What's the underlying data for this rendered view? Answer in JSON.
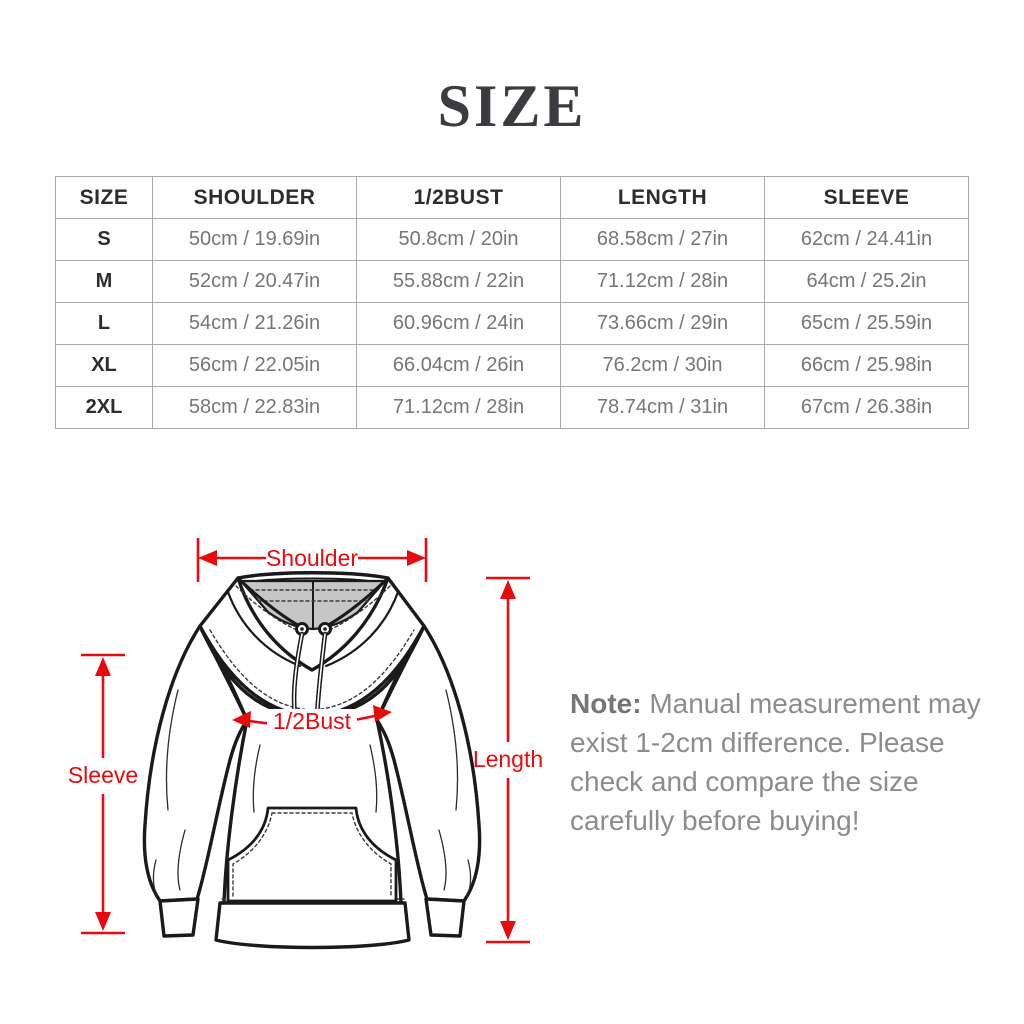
{
  "title": "SIZE",
  "table": {
    "headers": [
      "SIZE",
      "SHOULDER",
      "1/2BUST",
      "LENGTH",
      "SLEEVE"
    ],
    "rows": [
      [
        "S",
        "50cm / 19.69in",
        "50.8cm / 20in",
        "68.58cm / 27in",
        "62cm / 24.41in"
      ],
      [
        "M",
        "52cm / 20.47in",
        "55.88cm / 22in",
        "71.12cm / 28in",
        "64cm / 25.2in"
      ],
      [
        "L",
        "54cm / 21.26in",
        "60.96cm / 24in",
        "73.66cm / 29in",
        "65cm / 25.59in"
      ],
      [
        "XL",
        "56cm / 22.05in",
        "66.04cm / 26in",
        "76.2cm / 30in",
        "66cm / 25.98in"
      ],
      [
        "2XL",
        "58cm / 22.83in",
        "71.12cm / 28in",
        "78.74cm / 31in",
        "67cm / 26.38in"
      ]
    ]
  },
  "diagram": {
    "labels": {
      "shoulder": "Shoulder",
      "bust": "1/2Bust",
      "length": "Length",
      "sleeve": "Sleeve"
    }
  },
  "note": {
    "prefix": "Note:",
    "line1": "Manual measurement may",
    "line2": "exist 1-2cm difference. Please",
    "line3": "check and compare the size",
    "line4": "carefully before buying!"
  },
  "colors": {
    "arrow_red": "#e80b0e",
    "hood_lining_gray": "#c6c6c6",
    "sketch_ink": "#1a1a1a"
  }
}
